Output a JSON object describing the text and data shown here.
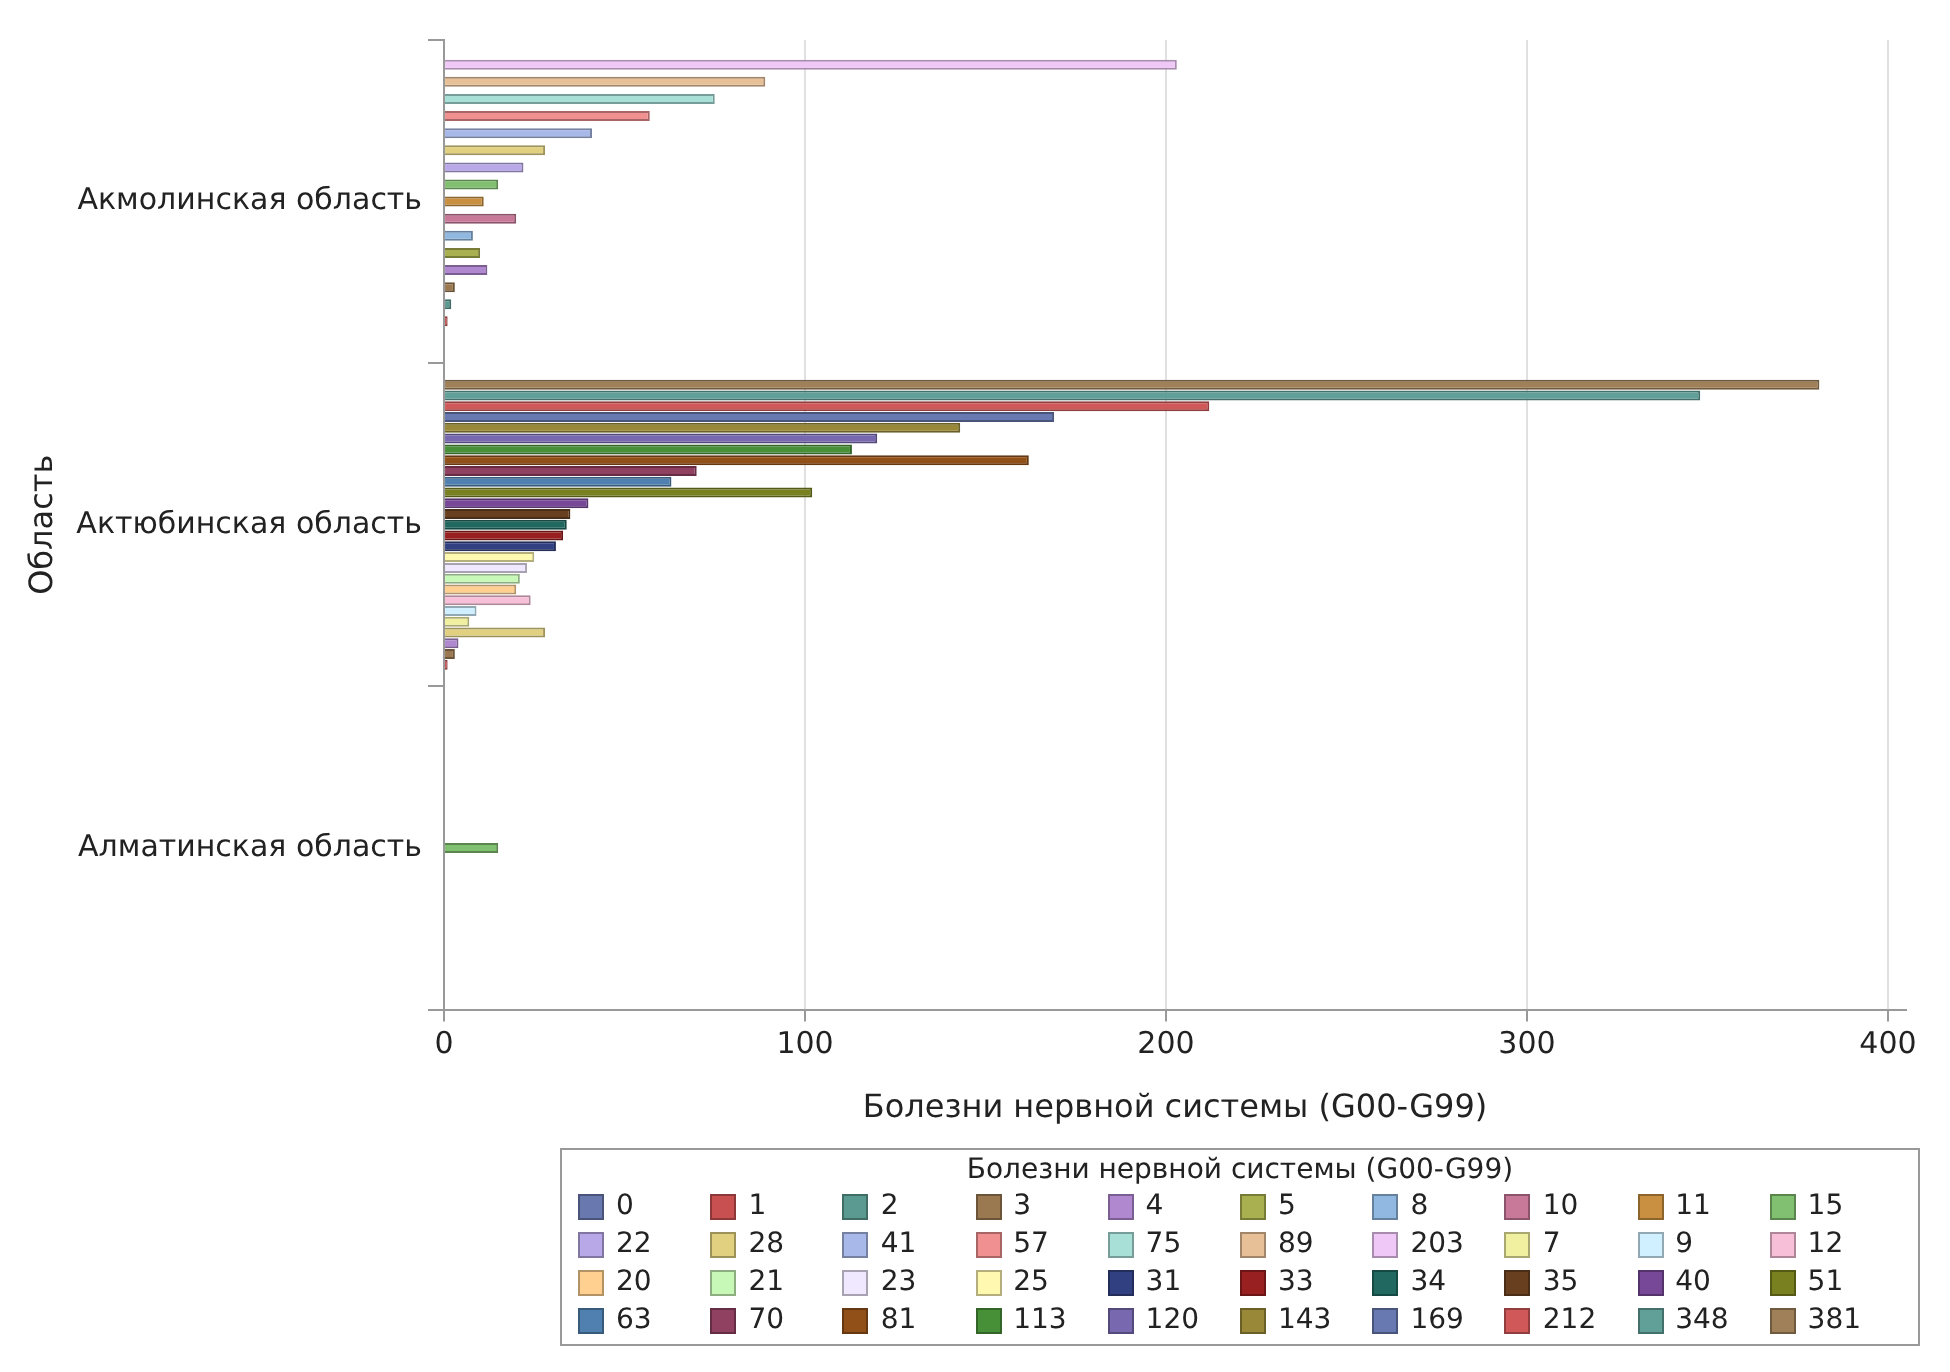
{
  "chart_data": {
    "type": "bar",
    "orientation": "horizontal",
    "xlabel": "Болезни нервной системы (G00-G99)",
    "ylabel": "Область",
    "legend_title": "Болезни нервной системы (G00-G99)",
    "categories": [
      "Акмолинская область",
      "Актюбинская область",
      "Алматинская область"
    ],
    "xlim": [
      0,
      405
    ],
    "xticks": [
      0,
      100,
      200,
      300,
      400
    ],
    "grid": "x",
    "legend": "bottom",
    "series": [
      {
        "name": "0",
        "color": "#6a78b0",
        "values": [
          0,
          null,
          null
        ]
      },
      {
        "name": "1",
        "color": "#c85050",
        "values": [
          1,
          1,
          null
        ]
      },
      {
        "name": "2",
        "color": "#5a9a90",
        "values": [
          2,
          null,
          null
        ]
      },
      {
        "name": "3",
        "color": "#9a7850",
        "values": [
          3,
          3,
          null
        ]
      },
      {
        "name": "4",
        "color": "#b088d0",
        "values": [
          12,
          4,
          null
        ]
      },
      {
        "name": "5",
        "color": "#a8b050",
        "values": [
          10,
          null,
          null
        ]
      },
      {
        "name": "8",
        "color": "#90b8e0",
        "values": [
          8,
          null,
          null
        ]
      },
      {
        "name": "10",
        "color": "#c87898",
        "values": [
          20,
          null,
          null
        ]
      },
      {
        "name": "11",
        "color": "#c89040",
        "values": [
          11,
          null,
          null
        ]
      },
      {
        "name": "15",
        "color": "#80c070",
        "values": [
          15,
          null,
          15
        ]
      },
      {
        "name": "22",
        "color": "#b8a8e8",
        "values": [
          22,
          null,
          null
        ]
      },
      {
        "name": "28",
        "color": "#e0d080",
        "values": [
          28,
          28,
          null
        ]
      },
      {
        "name": "41",
        "color": "#a8b8e8",
        "values": [
          41,
          null,
          null
        ]
      },
      {
        "name": "57",
        "color": "#f09090",
        "values": [
          57,
          null,
          null
        ]
      },
      {
        "name": "75",
        "color": "#a8e0d8",
        "values": [
          75,
          null,
          null
        ]
      },
      {
        "name": "89",
        "color": "#e8c098",
        "values": [
          89,
          null,
          null
        ]
      },
      {
        "name": "203",
        "color": "#f0c8f8",
        "values": [
          203,
          null,
          null
        ]
      },
      {
        "name": "7",
        "color": "#f0f0a0",
        "values": [
          null,
          7,
          null
        ]
      },
      {
        "name": "9",
        "color": "#d0f0ff",
        "values": [
          null,
          9,
          null
        ]
      },
      {
        "name": "12",
        "color": "#f8c0d8",
        "values": [
          null,
          24,
          null
        ]
      },
      {
        "name": "20",
        "color": "#ffd090",
        "values": [
          null,
          20,
          null
        ]
      },
      {
        "name": "21",
        "color": "#c8f8b8",
        "values": [
          null,
          21,
          null
        ]
      },
      {
        "name": "23",
        "color": "#f0e8ff",
        "values": [
          null,
          23,
          null
        ]
      },
      {
        "name": "25",
        "color": "#fff8b0",
        "values": [
          null,
          25,
          null
        ]
      },
      {
        "name": "31",
        "color": "#304080",
        "values": [
          null,
          31,
          null
        ]
      },
      {
        "name": "33",
        "color": "#982020",
        "values": [
          null,
          33,
          null
        ]
      },
      {
        "name": "34",
        "color": "#206860",
        "values": [
          null,
          34,
          null
        ]
      },
      {
        "name": "35",
        "color": "#684020",
        "values": [
          null,
          35,
          null
        ]
      },
      {
        "name": "40",
        "color": "#784898",
        "values": [
          null,
          40,
          null
        ]
      },
      {
        "name": "51",
        "color": "#788020",
        "values": [
          null,
          102,
          null
        ]
      },
      {
        "name": "63",
        "color": "#5080b0",
        "values": [
          null,
          63,
          null
        ]
      },
      {
        "name": "70",
        "color": "#904060",
        "values": [
          null,
          70,
          null
        ]
      },
      {
        "name": "81",
        "color": "#905018",
        "values": [
          null,
          162,
          null
        ]
      },
      {
        "name": "113",
        "color": "#489038",
        "values": [
          null,
          113,
          null
        ]
      },
      {
        "name": "120",
        "color": "#7868b0",
        "values": [
          null,
          120,
          null
        ]
      },
      {
        "name": "143",
        "color": "#988838",
        "values": [
          null,
          143,
          null
        ]
      },
      {
        "name": "169",
        "color": "#6878b0",
        "values": [
          null,
          169,
          null
        ]
      },
      {
        "name": "212",
        "color": "#d05858",
        "values": [
          null,
          212,
          null
        ]
      },
      {
        "name": "348",
        "color": "#60a098",
        "values": [
          null,
          348,
          null
        ]
      },
      {
        "name": "381",
        "color": "#a08058",
        "values": [
          null,
          381,
          null
        ]
      }
    ]
  }
}
